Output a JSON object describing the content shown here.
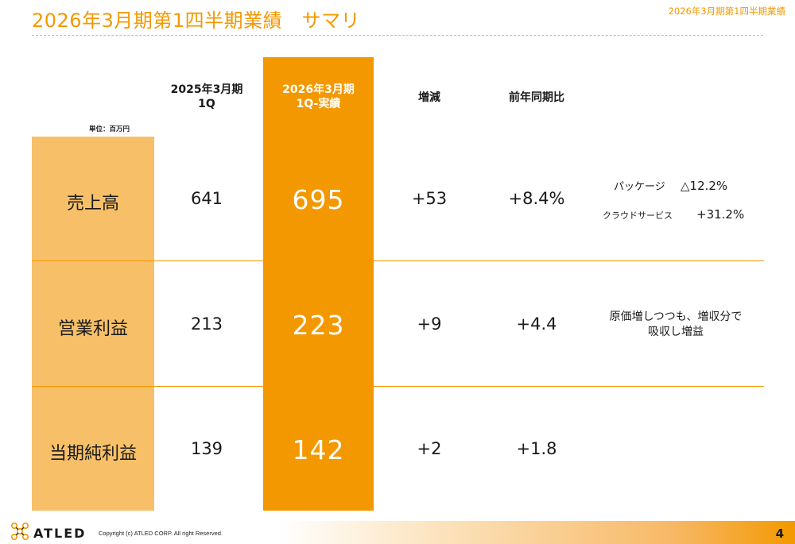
{
  "header": {
    "title": "2026年3月期第1四半期業績　サマリ",
    "tag": "2026年3月期第1四半期業績"
  },
  "table": {
    "unit_label": "単位：百万円",
    "columns": {
      "prev": [
        "2025年3月期",
        "1Q"
      ],
      "current": [
        "2026年3月期",
        "1Q-実績"
      ],
      "diff": "増減",
      "yoy": "前年同期比"
    },
    "rows": [
      {
        "label": "売上高",
        "prev": "641",
        "current": "695",
        "diff": "+53",
        "yoy": "+8.4%"
      },
      {
        "label": "営業利益",
        "prev": "213",
        "current": "223",
        "diff": "+9",
        "yoy": "+4.4"
      },
      {
        "label": "当期純利益",
        "prev": "139",
        "current": "142",
        "diff": "+2",
        "yoy": "+1.8"
      }
    ]
  },
  "notes": {
    "sales": [
      {
        "name": "パッケージ",
        "value": "△12.2%"
      },
      {
        "name": "クラウドサービス",
        "value": "+31.2%"
      }
    ],
    "operating_profit": [
      "原価増しつつも、増収分で",
      "吸収し増益"
    ]
  },
  "footer": {
    "logo": "ATLED",
    "copyright": "Copyright (c)  ATLED CORP. All right Reserved.",
    "page_number": "4"
  },
  "colors": {
    "accent": "#F39800",
    "label_column": "#F7C068"
  }
}
